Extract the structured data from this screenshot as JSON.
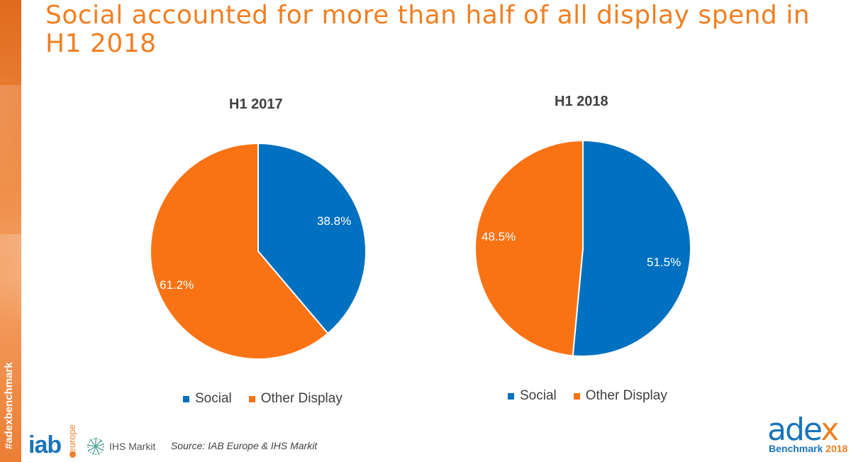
{
  "title": "Social accounted for more than half of all display spend in H1 2018",
  "side_label": "#adexbenchmark",
  "source": "Source: IAB Europe & IHS Markit",
  "logos": {
    "iab_word": "iab",
    "iab_region": "europe",
    "ihs_word": "IHS Markit",
    "adex_main_a": "ade",
    "adex_main_x": "x",
    "adex_sub": "Benchmark",
    "adex_year": "2018"
  },
  "colors": {
    "social": "#0070c0",
    "other_display": "#f97315",
    "title": "#f07f22",
    "brand_blue": "#1a74bb"
  },
  "chart_data": [
    {
      "type": "pie",
      "title": "H1 2017",
      "categories": [
        "Social",
        "Other Display"
      ],
      "values": [
        38.8,
        61.2
      ],
      "labels": [
        "38.8%",
        "61.2%"
      ],
      "legend": "bottom",
      "legend_entries": [
        "Social",
        "Other Display"
      ]
    },
    {
      "type": "pie",
      "title": "H1 2018",
      "categories": [
        "Social",
        "Other Display"
      ],
      "values": [
        51.5,
        48.5
      ],
      "labels": [
        "51.5%",
        "48.5%"
      ],
      "legend": "bottom",
      "legend_entries": [
        "Social",
        "Other Display"
      ]
    }
  ]
}
